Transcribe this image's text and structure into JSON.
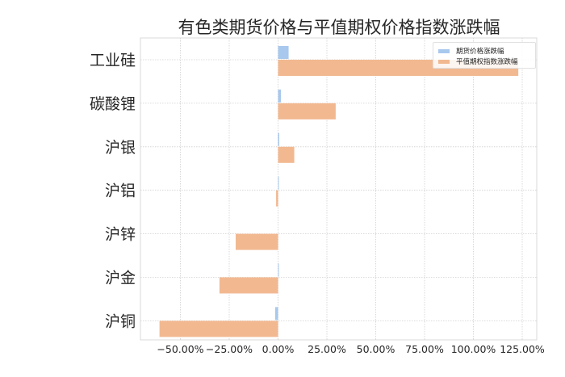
{
  "title": "有色类期货价格与平值期权价格指数涨跌幅",
  "legend": [
    {
      "label": "期货价格涨跌幅",
      "color": "#a9c8ed"
    },
    {
      "label": "平值期权指数涨跌幅",
      "color": "#f2b991"
    }
  ],
  "chart_data": {
    "type": "bar",
    "orientation": "horizontal",
    "title": "有色类期货价格与平值期权价格指数涨跌幅",
    "xlabel": "",
    "ylabel": "",
    "categories": [
      "工业硅",
      "碳酸锂",
      "沪银",
      "沪铝",
      "沪锌",
      "沪金",
      "沪铜"
    ],
    "series": [
      {
        "name": "期货价格涨跌幅",
        "color": "#a9c8ed",
        "values": [
          5.4,
          1.5,
          0.6,
          0.1,
          0.0,
          0.3,
          -1.5
        ]
      },
      {
        "name": "平值期权指数涨跌幅",
        "color": "#f2b991",
        "values": [
          123.0,
          29.5,
          8.3,
          -1.0,
          -21.7,
          -30.0,
          -60.7
        ]
      }
    ],
    "xticks": [
      -50,
      -25,
      0,
      25,
      50,
      75,
      100,
      125
    ],
    "xtick_labels": [
      "−50.00%",
      "−25.00%",
      "0.00%",
      "25.00%",
      "50.00%",
      "75.00%",
      "100.00%",
      "125.00%"
    ],
    "xlim": [
      -70,
      132
    ],
    "grid": true,
    "legend_position": "upper right"
  }
}
